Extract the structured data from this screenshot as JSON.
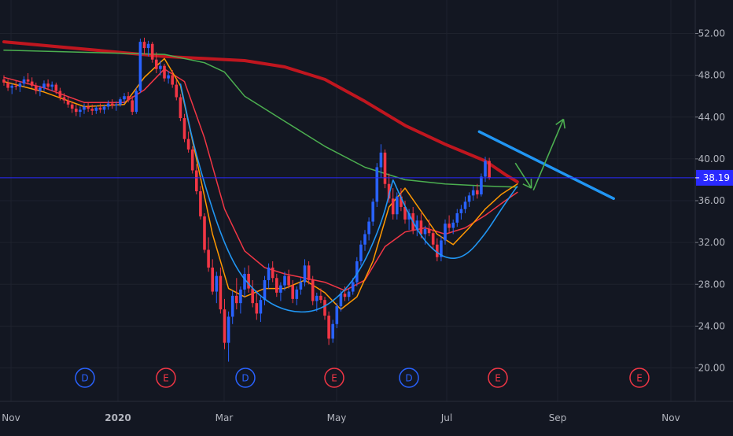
{
  "chart_data": {
    "type": "candlestick",
    "price_axis": {
      "ticks": [
        "52.00",
        "48.00",
        "44.00",
        "40.00",
        "36.00",
        "32.00",
        "28.00",
        "24.00",
        "20.00"
      ],
      "tick_values": [
        52,
        48,
        44,
        40,
        36,
        32,
        28,
        24,
        20
      ],
      "range": [
        16.8,
        55.2
      ]
    },
    "time_axis": {
      "labels": [
        "Nov",
        "2020",
        "Mar",
        "May",
        "Jul",
        "Sep",
        "Nov"
      ],
      "bold": [
        "2020"
      ]
    },
    "current_price": {
      "label": "38.19",
      "value": 38.19
    },
    "events": [
      "D",
      "E",
      "D",
      "E",
      "D",
      "E",
      "E"
    ],
    "event_colors": {
      "D": "#2962ff",
      "E": "#f23645"
    },
    "candles_ohlc": [
      [
        47.6,
        48.0,
        47.0,
        47.3
      ],
      [
        47.3,
        47.6,
        46.5,
        46.8
      ],
      [
        46.8,
        47.2,
        46.2,
        47.0
      ],
      [
        47.0,
        47.5,
        46.6,
        46.9
      ],
      [
        46.9,
        47.4,
        46.4,
        47.2
      ],
      [
        47.2,
        47.9,
        46.9,
        47.6
      ],
      [
        47.6,
        48.2,
        47.1,
        47.4
      ],
      [
        47.4,
        47.8,
        46.8,
        47.0
      ],
      [
        47.0,
        47.3,
        46.2,
        46.5
      ],
      [
        46.5,
        47.0,
        46.0,
        46.8
      ],
      [
        46.8,
        47.5,
        46.5,
        47.2
      ],
      [
        47.2,
        47.6,
        46.6,
        46.9
      ],
      [
        46.9,
        47.4,
        46.5,
        47.1
      ],
      [
        47.1,
        47.3,
        46.2,
        46.5
      ],
      [
        46.5,
        46.8,
        45.6,
        45.9
      ],
      [
        45.9,
        46.3,
        45.3,
        45.6
      ],
      [
        45.6,
        46.0,
        44.9,
        45.2
      ],
      [
        45.2,
        45.5,
        44.4,
        44.8
      ],
      [
        44.8,
        45.2,
        44.1,
        44.5
      ],
      [
        44.5,
        45.0,
        44.0,
        44.7
      ],
      [
        44.7,
        45.3,
        44.3,
        45.0
      ],
      [
        45.0,
        45.4,
        44.5,
        44.8
      ],
      [
        44.8,
        45.2,
        44.2,
        44.6
      ],
      [
        44.6,
        45.1,
        44.3,
        44.9
      ],
      [
        44.9,
        45.3,
        44.4,
        44.7
      ],
      [
        44.7,
        45.2,
        44.3,
        45.0
      ],
      [
        45.0,
        45.6,
        44.7,
        45.3
      ],
      [
        45.3,
        45.7,
        44.8,
        45.1
      ],
      [
        45.1,
        45.5,
        44.6,
        45.2
      ],
      [
        45.2,
        45.9,
        45.0,
        45.7
      ],
      [
        45.7,
        46.3,
        45.3,
        46.0
      ],
      [
        46.0,
        46.4,
        45.4,
        45.6
      ],
      [
        45.6,
        46.0,
        44.2,
        44.5
      ],
      [
        44.5,
        46.8,
        44.3,
        46.5
      ],
      [
        46.5,
        51.5,
        46.3,
        51.2
      ],
      [
        51.2,
        51.6,
        50.0,
        50.6
      ],
      [
        50.6,
        51.3,
        49.8,
        51.0
      ],
      [
        51.0,
        51.2,
        49.2,
        49.5
      ],
      [
        49.5,
        50.2,
        48.2,
        48.6
      ],
      [
        48.6,
        49.4,
        48.0,
        48.9
      ],
      [
        48.9,
        49.1,
        47.4,
        47.7
      ],
      [
        47.7,
        48.4,
        47.2,
        48.0
      ],
      [
        48.0,
        48.5,
        46.8,
        47.1
      ],
      [
        47.1,
        47.6,
        45.6,
        45.9
      ],
      [
        45.9,
        46.2,
        43.6,
        43.9
      ],
      [
        43.9,
        44.3,
        41.6,
        41.9
      ],
      [
        41.9,
        42.6,
        40.6,
        40.9
      ],
      [
        40.9,
        41.2,
        38.6,
        38.9
      ],
      [
        38.9,
        39.5,
        36.6,
        36.9
      ],
      [
        36.9,
        37.4,
        34.2,
        34.5
      ],
      [
        34.5,
        34.8,
        31.0,
        31.3
      ],
      [
        31.3,
        32.5,
        29.2,
        29.6
      ],
      [
        29.6,
        30.4,
        27.0,
        27.3
      ],
      [
        27.3,
        29.2,
        26.2,
        28.8
      ],
      [
        28.8,
        29.6,
        25.2,
        25.6
      ],
      [
        25.6,
        26.6,
        21.8,
        22.4
      ],
      [
        22.4,
        25.4,
        20.6,
        24.9
      ],
      [
        24.9,
        27.4,
        24.2,
        26.9
      ],
      [
        26.9,
        28.6,
        25.6,
        26.2
      ],
      [
        26.2,
        27.8,
        25.2,
        27.5
      ],
      [
        27.5,
        29.6,
        26.8,
        29.0
      ],
      [
        29.0,
        29.8,
        27.2,
        27.6
      ],
      [
        27.6,
        28.4,
        25.8,
        26.2
      ],
      [
        26.2,
        27.4,
        24.6,
        25.2
      ],
      [
        25.2,
        26.8,
        24.4,
        26.5
      ],
      [
        26.5,
        28.8,
        26.0,
        28.4
      ],
      [
        28.4,
        30.0,
        27.6,
        29.6
      ],
      [
        29.6,
        30.2,
        28.2,
        28.6
      ],
      [
        28.6,
        29.0,
        26.8,
        27.2
      ],
      [
        27.2,
        28.2,
        26.4,
        27.9
      ],
      [
        27.9,
        29.2,
        27.4,
        28.8
      ],
      [
        28.8,
        29.4,
        27.6,
        27.9
      ],
      [
        27.9,
        28.4,
        26.2,
        26.6
      ],
      [
        26.6,
        27.8,
        26.0,
        27.5
      ],
      [
        27.5,
        28.6,
        27.0,
        28.2
      ],
      [
        28.2,
        30.4,
        27.8,
        29.8
      ],
      [
        29.8,
        30.2,
        28.0,
        28.4
      ],
      [
        28.4,
        28.8,
        26.0,
        26.4
      ],
      [
        26.4,
        27.2,
        25.4,
        26.9
      ],
      [
        26.9,
        27.6,
        26.2,
        26.5
      ],
      [
        26.5,
        26.8,
        24.6,
        25.0
      ],
      [
        25.0,
        25.4,
        22.2,
        22.8
      ],
      [
        22.8,
        24.6,
        22.4,
        24.2
      ],
      [
        24.2,
        26.2,
        23.8,
        25.9
      ],
      [
        25.9,
        27.4,
        25.4,
        27.1
      ],
      [
        27.1,
        27.8,
        26.4,
        26.8
      ],
      [
        26.8,
        27.6,
        26.4,
        27.3
      ],
      [
        27.3,
        28.6,
        27.0,
        28.2
      ],
      [
        28.2,
        30.6,
        27.8,
        30.2
      ],
      [
        30.2,
        32.2,
        29.8,
        31.8
      ],
      [
        31.8,
        33.2,
        31.2,
        32.8
      ],
      [
        32.8,
        34.4,
        32.2,
        34.0
      ],
      [
        34.0,
        36.2,
        33.6,
        35.9
      ],
      [
        35.9,
        39.6,
        35.4,
        39.2
      ],
      [
        39.2,
        41.4,
        38.2,
        40.6
      ],
      [
        40.6,
        40.9,
        37.2,
        37.6
      ],
      [
        37.6,
        38.6,
        35.8,
        36.2
      ],
      [
        36.2,
        37.2,
        34.2,
        34.7
      ],
      [
        34.7,
        36.8,
        34.2,
        36.4
      ],
      [
        36.4,
        37.2,
        35.0,
        35.4
      ],
      [
        35.4,
        36.0,
        33.8,
        34.2
      ],
      [
        34.2,
        35.2,
        33.2,
        34.8
      ],
      [
        34.8,
        35.4,
        32.8,
        33.2
      ],
      [
        33.2,
        34.6,
        32.6,
        34.1
      ],
      [
        34.1,
        34.8,
        32.4,
        32.8
      ],
      [
        32.8,
        33.6,
        31.8,
        33.3
      ],
      [
        33.3,
        34.2,
        32.6,
        32.9
      ],
      [
        32.9,
        33.2,
        31.4,
        31.8
      ],
      [
        31.8,
        32.4,
        30.2,
        30.6
      ],
      [
        30.6,
        32.6,
        30.2,
        32.2
      ],
      [
        32.2,
        34.2,
        31.8,
        33.8
      ],
      [
        33.8,
        34.6,
        33.0,
        33.4
      ],
      [
        33.4,
        34.2,
        32.8,
        33.9
      ],
      [
        33.9,
        35.2,
        33.5,
        34.8
      ],
      [
        34.8,
        35.6,
        34.2,
        35.2
      ],
      [
        35.2,
        36.4,
        34.8,
        35.9
      ],
      [
        35.9,
        36.8,
        35.4,
        36.5
      ],
      [
        36.5,
        37.4,
        36.0,
        37.0
      ],
      [
        37.0,
        37.6,
        36.2,
        36.6
      ],
      [
        36.6,
        38.6,
        36.4,
        38.3
      ],
      [
        38.3,
        40.2,
        37.8,
        39.8
      ],
      [
        39.8,
        40.1,
        38.0,
        38.19
      ]
    ],
    "moving_averages": [
      {
        "color": "#c0161f",
        "weight": "thick",
        "values": [
          [
            0,
            51.2
          ],
          [
            40,
            49.8
          ],
          [
            60,
            49.4
          ],
          [
            70,
            48.8
          ],
          [
            80,
            47.6
          ],
          [
            90,
            45.5
          ],
          [
            100,
            43.2
          ],
          [
            110,
            41.4
          ],
          [
            120,
            39.8
          ],
          [
            125,
            38.5
          ],
          [
            128,
            37.8
          ]
        ]
      },
      {
        "color": "#4caf50",
        "weight": "thin",
        "values": [
          [
            0,
            50.4
          ],
          [
            40,
            50.0
          ],
          [
            50,
            49.2
          ],
          [
            55,
            48.3
          ],
          [
            60,
            46.0
          ],
          [
            70,
            43.6
          ],
          [
            80,
            41.2
          ],
          [
            90,
            39.2
          ],
          [
            100,
            38.0
          ],
          [
            110,
            37.6
          ],
          [
            120,
            37.4
          ],
          [
            128,
            37.3
          ]
        ]
      },
      {
        "color": "#f23645",
        "weight": "thin",
        "values": [
          [
            0,
            47.8
          ],
          [
            10,
            46.8
          ],
          [
            20,
            45.4
          ],
          [
            30,
            45.4
          ],
          [
            35,
            46.6
          ],
          [
            40,
            48.6
          ],
          [
            45,
            47.4
          ],
          [
            50,
            42.0
          ],
          [
            55,
            35.2
          ],
          [
            60,
            31.2
          ],
          [
            65,
            29.6
          ],
          [
            70,
            29.0
          ],
          [
            75,
            28.6
          ],
          [
            80,
            28.2
          ],
          [
            85,
            27.4
          ],
          [
            90,
            28.4
          ],
          [
            95,
            31.6
          ],
          [
            100,
            33.0
          ],
          [
            105,
            33.4
          ],
          [
            110,
            32.8
          ],
          [
            115,
            33.4
          ],
          [
            120,
            34.6
          ],
          [
            125,
            36.0
          ],
          [
            128,
            36.8
          ]
        ]
      },
      {
        "color": "#ff9800",
        "weight": "thin",
        "values": [
          [
            0,
            47.4
          ],
          [
            10,
            46.4
          ],
          [
            20,
            45.0
          ],
          [
            30,
            45.2
          ],
          [
            35,
            47.8
          ],
          [
            40,
            49.6
          ],
          [
            44,
            47.0
          ],
          [
            48,
            40.0
          ],
          [
            52,
            32.8
          ],
          [
            56,
            27.6
          ],
          [
            60,
            26.8
          ],
          [
            65,
            27.6
          ],
          [
            70,
            27.6
          ],
          [
            75,
            28.4
          ],
          [
            80,
            27.2
          ],
          [
            84,
            25.6
          ],
          [
            88,
            26.8
          ],
          [
            92,
            30.2
          ],
          [
            96,
            35.4
          ],
          [
            100,
            37.2
          ],
          [
            104,
            35.0
          ],
          [
            108,
            32.8
          ],
          [
            112,
            31.8
          ],
          [
            116,
            33.4
          ],
          [
            120,
            35.2
          ],
          [
            124,
            36.6
          ],
          [
            128,
            37.6
          ]
        ]
      }
    ],
    "drawings": [
      {
        "type": "arc",
        "color": "#2196f3",
        "x": [
          44,
          48,
          56,
          64,
          72,
          80,
          88,
          94,
          97
        ],
        "y": [
          47.2,
          40.0,
          30.4,
          26.6,
          25.2,
          25.6,
          28.6,
          33.6,
          38.0
        ]
      },
      {
        "type": "arc",
        "color": "#2196f3",
        "x": [
          97,
          101,
          105,
          110,
          115,
          120,
          124,
          128
        ],
        "y": [
          38.0,
          34.6,
          32.0,
          30.4,
          30.6,
          32.8,
          35.2,
          37.4
        ]
      },
      {
        "type": "trendline",
        "color": "#2196f3",
        "x": [
          118.5,
          152
        ],
        "y": [
          42.6,
          36.2
        ]
      },
      {
        "type": "arrow",
        "color": "#4caf50",
        "x": [
          127.5,
          131.5
        ],
        "y": [
          39.6,
          37.2
        ]
      },
      {
        "type": "arrow",
        "color": "#4caf50",
        "x": [
          132,
          139.5
        ],
        "y": [
          37.0,
          43.8
        ]
      }
    ]
  }
}
